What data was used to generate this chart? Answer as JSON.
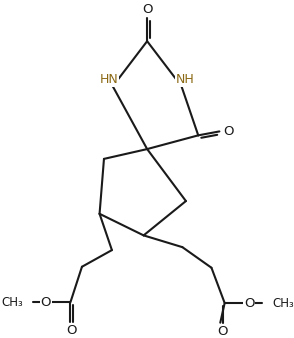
{
  "bg_color": "#FFFFFF",
  "line_color": "#1a1a1a",
  "hn_color": "#8B6914",
  "figsize": [
    2.94,
    3.38
  ],
  "dpi": 100,
  "xlim": [
    0,
    294
  ],
  "ylim": [
    0,
    338
  ],
  "lw": 1.5
}
